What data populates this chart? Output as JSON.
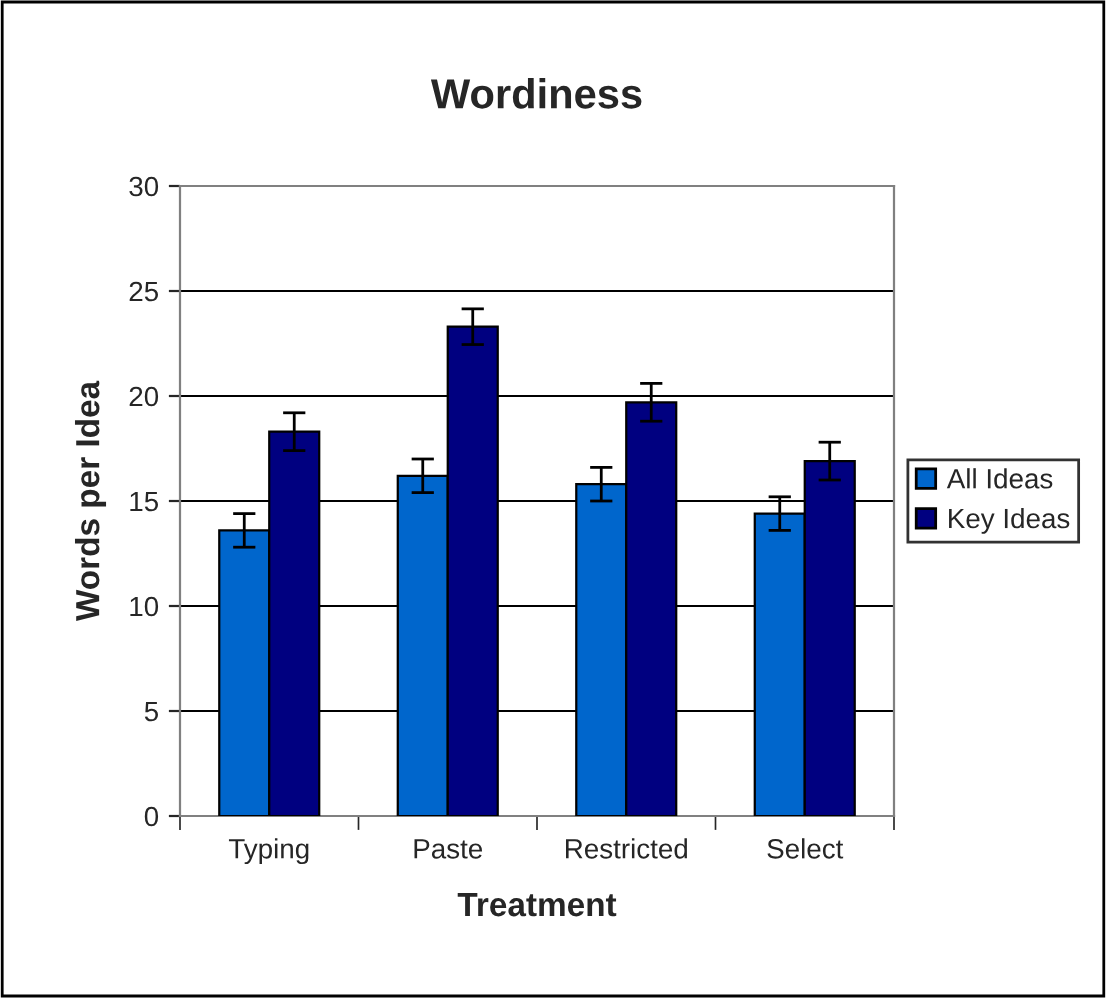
{
  "chart_data": {
    "type": "bar",
    "title": "Wordiness",
    "xlabel": "Treatment",
    "ylabel": "Words per Idea",
    "categories": [
      "Typing",
      "Paste",
      "Restricted",
      "Select"
    ],
    "series": [
      {
        "name": "All Ideas",
        "color": "#0066cc",
        "values": [
          13.6,
          16.2,
          15.8,
          14.4
        ],
        "errors": [
          0.8,
          0.8,
          0.8,
          0.8
        ]
      },
      {
        "name": "Key Ideas",
        "color": "#000080",
        "values": [
          18.3,
          23.3,
          19.7,
          16.9
        ],
        "errors": [
          0.9,
          0.85,
          0.9,
          0.9
        ]
      }
    ],
    "ylim": [
      0,
      30
    ],
    "yticks": [
      0,
      5,
      10,
      15,
      20,
      25,
      30
    ],
    "grid": "y",
    "legend": "right"
  }
}
